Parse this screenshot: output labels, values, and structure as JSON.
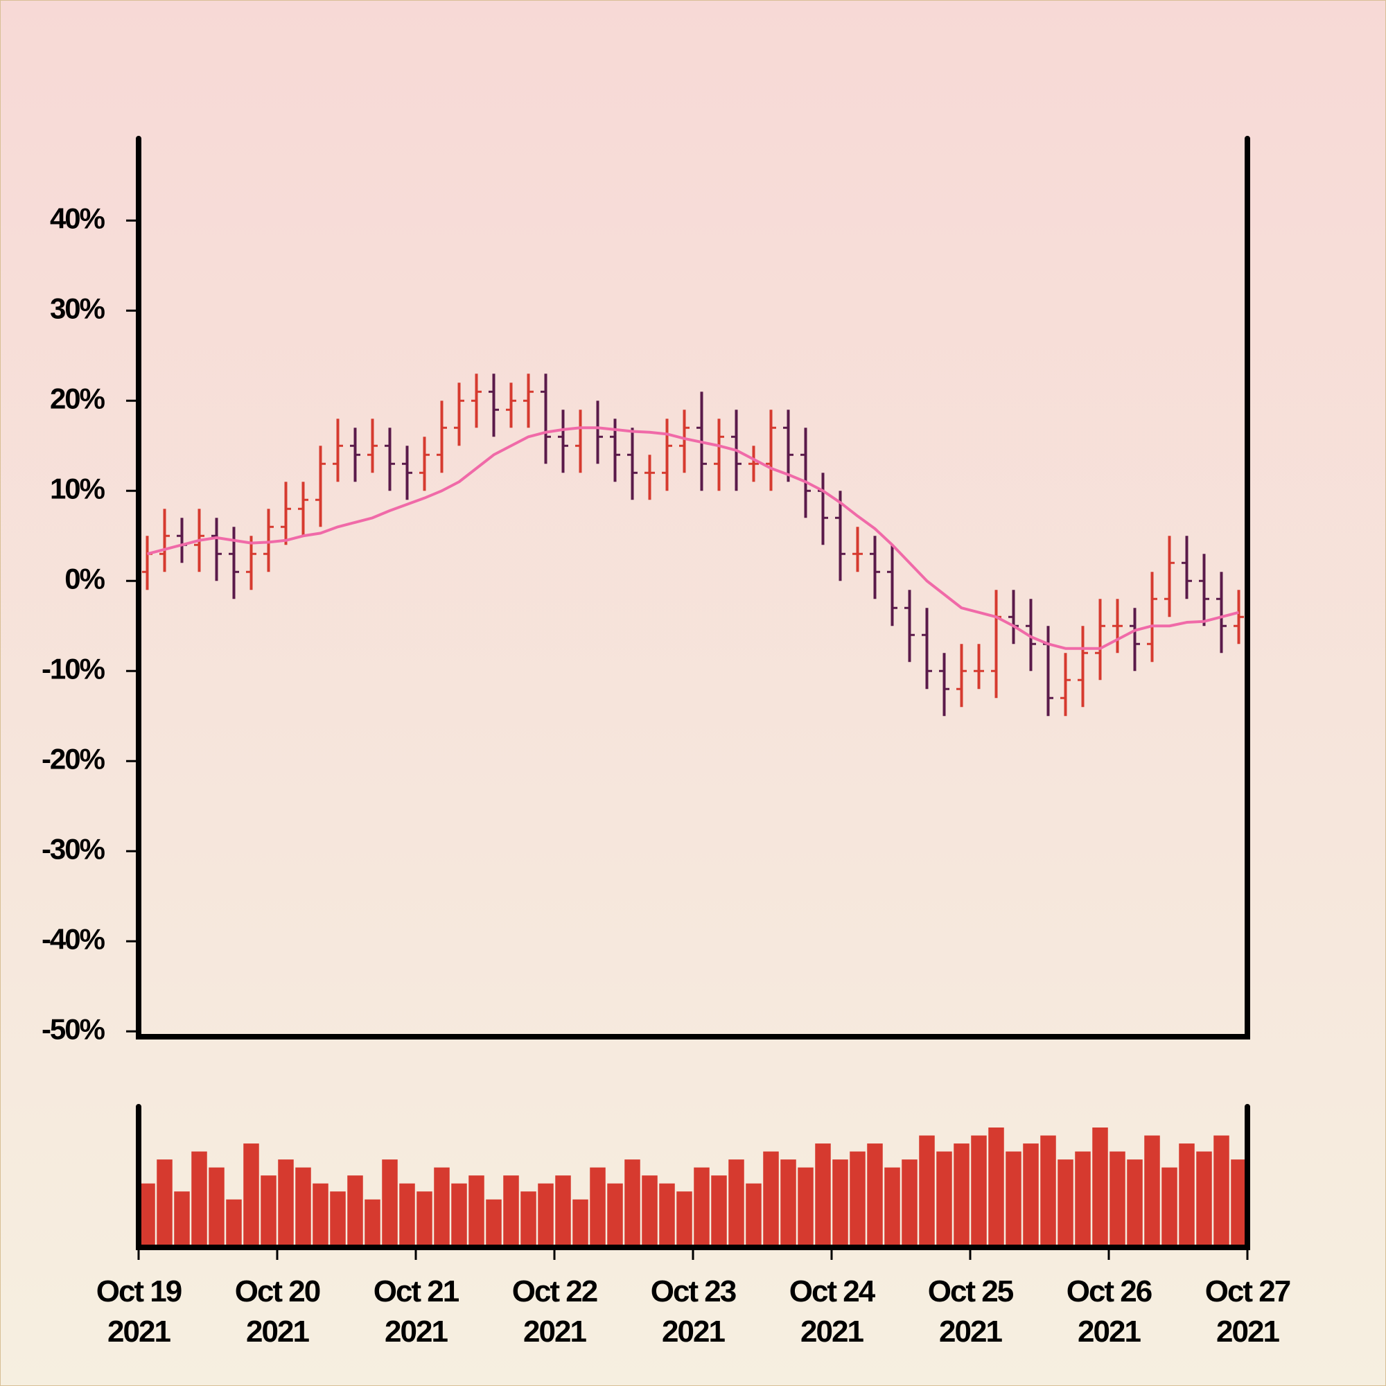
{
  "chart_data": {
    "type": "ohlc",
    "x": [
      0.0625,
      0.1875,
      0.3125,
      0.4375,
      0.5625,
      0.6875,
      0.8125,
      0.9375,
      1.0625,
      1.1875,
      1.3125,
      1.4375,
      1.5625,
      1.6875,
      1.8125,
      1.9375,
      2.0625,
      2.1875,
      2.3125,
      2.4375,
      2.5625,
      2.6875,
      2.8125,
      2.9375,
      3.0625,
      3.1875,
      3.3125,
      3.4375,
      3.5625,
      3.6875,
      3.8125,
      3.9375,
      4.0625,
      4.1875,
      4.3125,
      4.4375,
      4.5625,
      4.6875,
      4.8125,
      4.9375,
      5.0625,
      5.1875,
      5.3125,
      5.4375,
      5.5625,
      5.6875,
      5.8125,
      5.9375,
      6.0625,
      6.1875,
      6.3125,
      6.4375,
      6.5625,
      6.6875,
      6.8125,
      6.9375,
      7.0625,
      7.1875,
      7.3125,
      7.4375,
      7.5625,
      7.6875,
      7.8125,
      7.9375
    ],
    "open": [
      1,
      3,
      5,
      4,
      5,
      3,
      1,
      3,
      6,
      8,
      9,
      13,
      15,
      14,
      15,
      13,
      12,
      14,
      17,
      20,
      21,
      19,
      20,
      21,
      16,
      15,
      17,
      16,
      14,
      12,
      12,
      15,
      17,
      13,
      16,
      13,
      13,
      17,
      14,
      10,
      7,
      3,
      3,
      1,
      -3,
      -6,
      -10,
      -12,
      -10,
      -10,
      -4,
      -5,
      -7,
      -13,
      -11,
      -8,
      -5,
      -5,
      -7,
      -2,
      2,
      0,
      -2,
      -5
    ],
    "high": [
      5,
      8,
      7,
      8,
      7,
      6,
      5,
      8,
      11,
      11,
      15,
      18,
      17,
      18,
      17,
      15,
      16,
      20,
      22,
      23,
      23,
      22,
      23,
      23,
      19,
      19,
      20,
      18,
      17,
      14,
      18,
      19,
      21,
      18,
      19,
      15,
      19,
      19,
      17,
      12,
      10,
      6,
      5,
      4,
      -1,
      -3,
      -8,
      -7,
      -7,
      -1,
      -1,
      -2,
      -5,
      -8,
      -5,
      -2,
      -2,
      -3,
      1,
      5,
      5,
      3,
      1,
      -1
    ],
    "low": [
      -1,
      1,
      2,
      1,
      0,
      -2,
      -1,
      1,
      4,
      5,
      6,
      11,
      11,
      12,
      10,
      9,
      10,
      12,
      15,
      17,
      16,
      17,
      17,
      13,
      12,
      12,
      13,
      11,
      9,
      9,
      10,
      12,
      10,
      10,
      10,
      11,
      10,
      11,
      7,
      4,
      0,
      1,
      -2,
      -5,
      -9,
      -12,
      -15,
      -14,
      -12,
      -13,
      -7,
      -10,
      -15,
      -15,
      -14,
      -11,
      -8,
      -10,
      -9,
      -4,
      -2,
      -5,
      -8,
      -7
    ],
    "close": [
      3,
      5,
      4,
      5,
      3,
      1,
      3,
      6,
      8,
      9,
      13,
      15,
      14,
      15,
      13,
      12,
      14,
      17,
      20,
      21,
      19,
      20,
      21,
      16,
      15,
      17,
      16,
      14,
      12,
      12,
      15,
      17,
      13,
      16,
      13,
      13,
      17,
      14,
      10,
      7,
      3,
      3,
      1,
      -3,
      -6,
      -10,
      -12,
      -10,
      -10,
      -4,
      -5,
      -7,
      -13,
      -11,
      -8,
      -5,
      -5,
      -7,
      -2,
      2,
      0,
      -2,
      -5,
      -4
    ],
    "volume": [
      40,
      55,
      35,
      60,
      50,
      30,
      65,
      45,
      55,
      50,
      40,
      35,
      45,
      30,
      55,
      40,
      35,
      50,
      40,
      45,
      30,
      45,
      35,
      40,
      45,
      30,
      50,
      40,
      55,
      45,
      40,
      35,
      50,
      45,
      55,
      40,
      60,
      55,
      50,
      65,
      55,
      60,
      65,
      50,
      55,
      70,
      60,
      65,
      70,
      75,
      60,
      65,
      70,
      55,
      60,
      75,
      60,
      55,
      70,
      50,
      65,
      60,
      70,
      55
    ],
    "moving_average": {
      "color": "#f06aa8",
      "values": [
        3,
        3.5,
        4,
        4.5,
        4.8,
        4.5,
        4.2,
        4.3,
        4.5,
        5,
        5.3,
        6,
        6.5,
        7,
        7.8,
        8.5,
        9.2,
        10,
        11,
        12.5,
        14,
        15,
        16,
        16.5,
        16.8,
        17,
        17,
        16.8,
        16.6,
        16.5,
        16.3,
        15.8,
        15.4,
        15,
        14.5,
        13.5,
        12.5,
        11.8,
        11,
        10,
        8.7,
        7.2,
        5.8,
        4,
        2,
        0,
        -1.5,
        -3,
        -3.5,
        -4,
        -5,
        -6.2,
        -7,
        -7.5,
        -7.5,
        -7.5,
        -6.5,
        -5.5,
        -5,
        -5,
        -4.6,
        -4.5,
        -4,
        -3.5
      ]
    },
    "up_color": "#d63a2f",
    "down_color": "#5a1a4a",
    "volume_color": "#d63a2f",
    "xlim": [
      0,
      8
    ],
    "xticks": [
      {
        "value": 0,
        "label": "Oct 19 2021"
      },
      {
        "value": 1,
        "label": "Oct 20 2021"
      },
      {
        "value": 2,
        "label": "Oct 21 2021"
      },
      {
        "value": 3,
        "label": "Oct 22 2021"
      },
      {
        "value": 4,
        "label": "Oct 23 2021"
      },
      {
        "value": 5,
        "label": "Oct 24 2021"
      },
      {
        "value": 6,
        "label": "Oct 25 2021"
      },
      {
        "value": 7,
        "label": "Oct 26 2021"
      },
      {
        "value": 8,
        "label": "Oct 27 2021"
      }
    ],
    "ylim": [
      -50.6,
      49.1
    ],
    "yticks": [
      {
        "value": 40,
        "label": "40%"
      },
      {
        "value": 30,
        "label": "30%"
      },
      {
        "value": 20,
        "label": "20%"
      },
      {
        "value": 10,
        "label": "10%"
      },
      {
        "value": 0,
        "label": "0%"
      },
      {
        "value": -10,
        "label": "-10%"
      },
      {
        "value": -20,
        "label": "-20%"
      },
      {
        "value": -30,
        "label": "-30%"
      },
      {
        "value": -40,
        "label": "-40%"
      },
      {
        "value": -50,
        "label": "-50%"
      }
    ]
  }
}
